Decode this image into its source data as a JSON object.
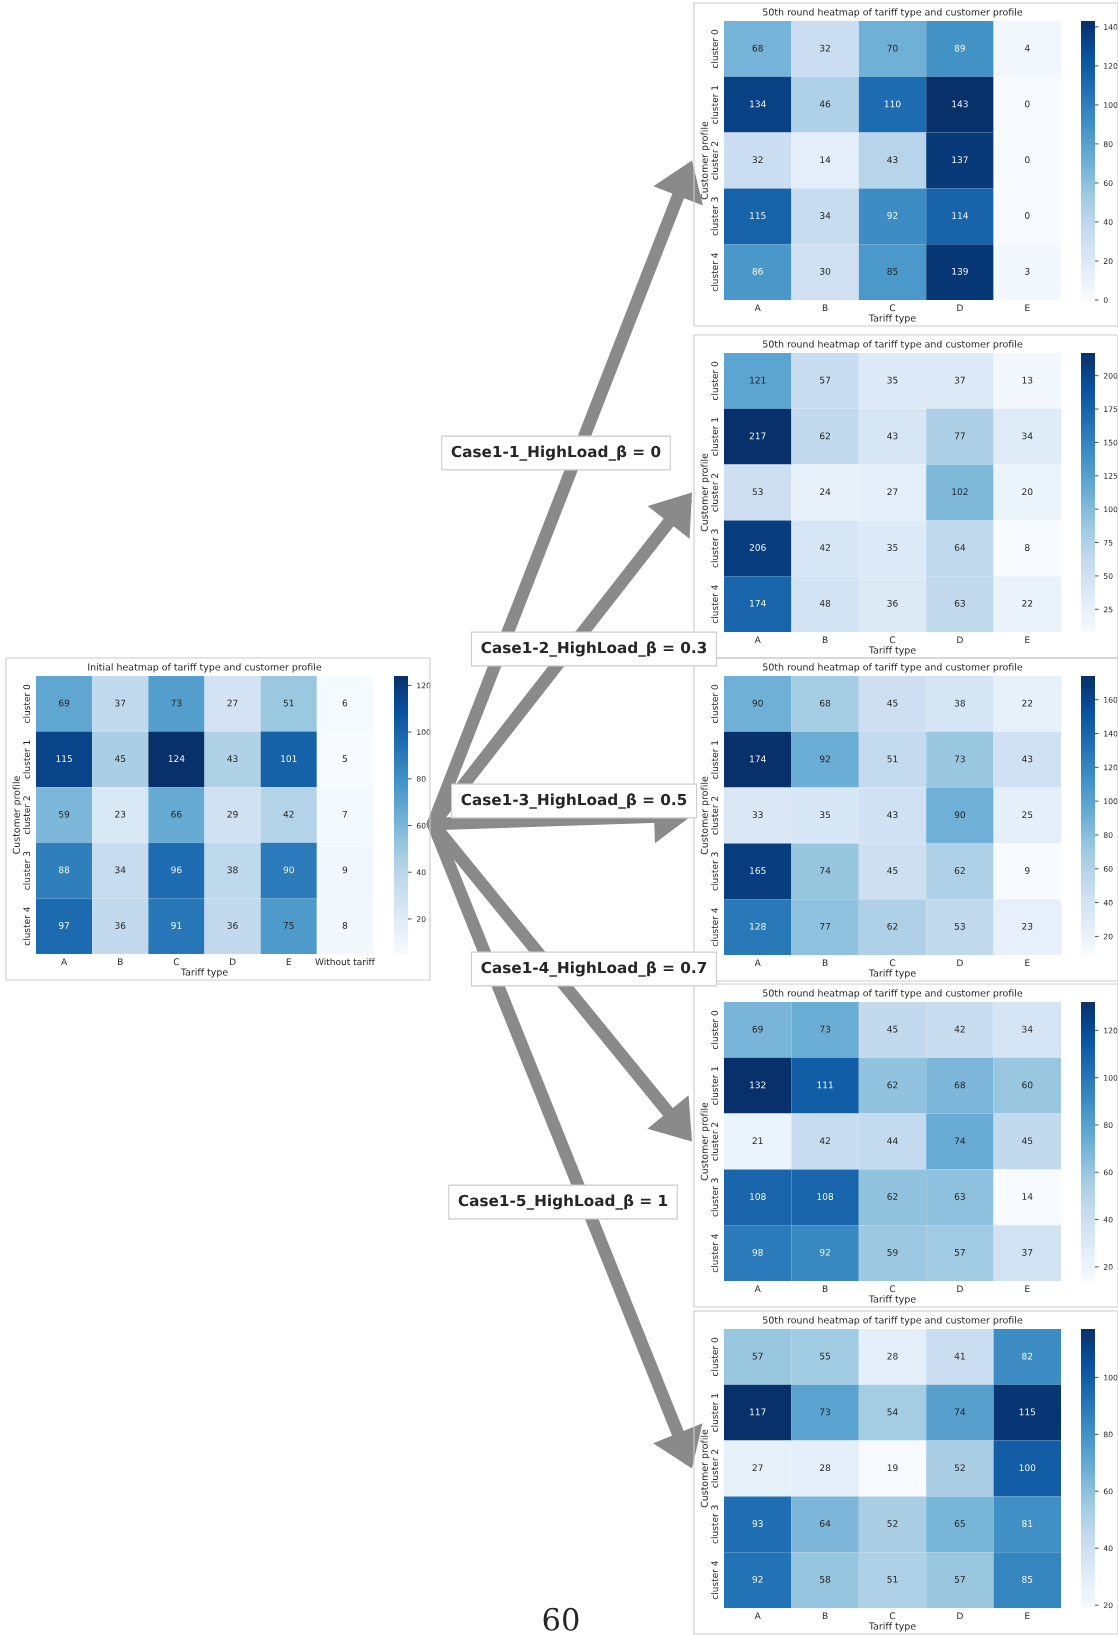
{
  "chart_data": [
    {
      "type": "heatmap",
      "title": "Initial heatmap of tariff type and customer profile",
      "xlabel": "Tariff type",
      "ylabel": "Customer profile",
      "categories": [
        "A",
        "B",
        "C",
        "D",
        "E",
        "Without tariff"
      ],
      "y_categories": [
        "cluster 0",
        "cluster 1",
        "cluster 2",
        "cluster 3",
        "cluster 4"
      ],
      "cells": [
        [
          69,
          37,
          73,
          27,
          51,
          6
        ],
        [
          115,
          45,
          124,
          43,
          101,
          5
        ],
        [
          59,
          23,
          66,
          29,
          42,
          7
        ],
        [
          88,
          34,
          96,
          38,
          90,
          9
        ],
        [
          97,
          36,
          91,
          36,
          75,
          8
        ]
      ],
      "clim": [
        5,
        124
      ],
      "cticks": [
        20,
        40,
        60,
        80,
        100,
        120
      ],
      "data_labels": true,
      "grid": false,
      "annotations": [
        "60"
      ]
    },
    {
      "type": "heatmap",
      "title": "50th round heatmap of tariff type and customer profile",
      "xlabel": "Tariff type",
      "ylabel": "Customer profile",
      "categories": [
        "A",
        "B",
        "C",
        "D",
        "E"
      ],
      "y_categories": [
        "cluster 0",
        "cluster 1",
        "cluster 2",
        "cluster 3",
        "cluster 4"
      ],
      "cells": [
        [
          68,
          32,
          70,
          89,
          4
        ],
        [
          134,
          46,
          110,
          143,
          0
        ],
        [
          32,
          14,
          43,
          137,
          0
        ],
        [
          115,
          34,
          92,
          114,
          0
        ],
        [
          86,
          30,
          85,
          139,
          3
        ]
      ],
      "clim": [
        0,
        143
      ],
      "cticks": [
        0,
        20,
        40,
        60,
        80,
        100,
        120,
        140
      ],
      "data_labels": true,
      "grid": false,
      "annotations": [
        "Case1-1_HighLoad_β = 0"
      ]
    },
    {
      "type": "heatmap",
      "title": "50th round heatmap of tariff type and customer profile",
      "xlabel": "Tariff type",
      "ylabel": "Customer profile",
      "categories": [
        "A",
        "B",
        "C",
        "D",
        "E"
      ],
      "y_categories": [
        "cluster 0",
        "cluster 1",
        "cluster 2",
        "cluster 3",
        "cluster 4"
      ],
      "cells": [
        [
          121,
          57,
          35,
          37,
          13
        ],
        [
          217,
          62,
          43,
          77,
          34
        ],
        [
          53,
          24,
          27,
          102,
          20
        ],
        [
          206,
          42,
          35,
          64,
          8
        ],
        [
          174,
          48,
          36,
          63,
          22
        ]
      ],
      "clim": [
        8,
        217
      ],
      "cticks": [
        25,
        50,
        75,
        100,
        125,
        150,
        175,
        200
      ],
      "data_labels": true,
      "grid": false,
      "annotations": [
        "Case1-2_HighLoad_β = 0.3"
      ]
    },
    {
      "type": "heatmap",
      "title": "50th round heatmap of tariff type and customer profile",
      "xlabel": "Tariff type",
      "ylabel": "Customer profile",
      "categories": [
        "A",
        "B",
        "C",
        "D",
        "E"
      ],
      "y_categories": [
        "cluster 0",
        "cluster 1",
        "cluster 2",
        "cluster 3",
        "cluster 4"
      ],
      "cells": [
        [
          90,
          68,
          45,
          38,
          22
        ],
        [
          174,
          92,
          51,
          73,
          43
        ],
        [
          33,
          35,
          43,
          90,
          25
        ],
        [
          165,
          74,
          45,
          62,
          9
        ],
        [
          128,
          77,
          62,
          53,
          23
        ]
      ],
      "clim": [
        9,
        174
      ],
      "cticks": [
        20,
        40,
        60,
        80,
        100,
        120,
        140,
        160
      ],
      "data_labels": true,
      "grid": false,
      "annotations": [
        "Case1-3_HighLoad_β = 0.5"
      ]
    },
    {
      "type": "heatmap",
      "title": "50th round heatmap of tariff type and customer profile",
      "xlabel": "Tariff type",
      "ylabel": "Customer profile",
      "categories": [
        "A",
        "B",
        "C",
        "D",
        "E"
      ],
      "y_categories": [
        "cluster 0",
        "cluster 1",
        "cluster 2",
        "cluster 3",
        "cluster 4"
      ],
      "cells": [
        [
          69,
          73,
          45,
          42,
          34
        ],
        [
          132,
          111,
          62,
          68,
          60
        ],
        [
          21,
          42,
          44,
          74,
          45
        ],
        [
          108,
          108,
          62,
          63,
          14
        ],
        [
          98,
          92,
          59,
          57,
          37
        ]
      ],
      "clim": [
        14,
        132
      ],
      "cticks": [
        20,
        40,
        60,
        80,
        100,
        120
      ],
      "data_labels": true,
      "grid": false,
      "annotations": [
        "Case1-4_HighLoad_β = 0.7"
      ]
    },
    {
      "type": "heatmap",
      "title": "50th round heatmap of tariff type and customer profile",
      "xlabel": "Tariff type",
      "ylabel": "Customer profile",
      "categories": [
        "A",
        "B",
        "C",
        "D",
        "E"
      ],
      "y_categories": [
        "cluster 0",
        "cluster 1",
        "cluster 2",
        "cluster 3",
        "cluster 4"
      ],
      "cells": [
        [
          57,
          55,
          28,
          41,
          82
        ],
        [
          117,
          73,
          54,
          74,
          115
        ],
        [
          27,
          28,
          19,
          52,
          100
        ],
        [
          93,
          64,
          52,
          65,
          81
        ],
        [
          92,
          58,
          51,
          57,
          85
        ]
      ],
      "clim": [
        19,
        117
      ],
      "cticks": [
        20,
        40,
        60,
        80,
        100
      ],
      "data_labels": true,
      "grid": false,
      "annotations": [
        "Case1-5_HighLoad_β = 1"
      ]
    }
  ]
}
